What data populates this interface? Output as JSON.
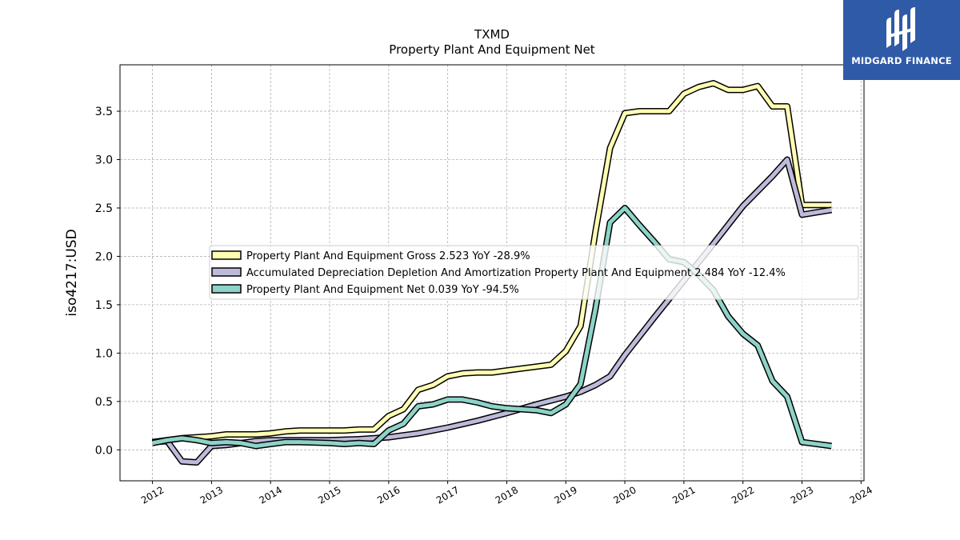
{
  "chart_data": {
    "type": "line",
    "title": "TXMD",
    "subtitle": "Property Plant And Equipment Net",
    "xlabel": "",
    "ylabel": "iso4217:USD",
    "xlim": [
      2011.45,
      2024.05
    ],
    "ylim": [
      -0.32,
      3.98
    ],
    "x_ticks": [
      2012,
      2013,
      2014,
      2015,
      2016,
      2017,
      2018,
      2019,
      2020,
      2021,
      2022,
      2023,
      2024
    ],
    "y_ticks": [
      0.0,
      0.5,
      1.0,
      1.5,
      2.0,
      2.5,
      3.0,
      3.5
    ],
    "y_tick_labels": [
      "0.0",
      "0.5",
      "1.0",
      "1.5",
      "2.0",
      "2.5",
      "3.0",
      "3.5"
    ],
    "grid": true,
    "legend_position": "center",
    "series": [
      {
        "name": "Property Plant And Equipment Gross  2.523 YoY -28.9%",
        "color": "#ffffb3",
        "x": [
          2012.0,
          2012.5,
          2013.0,
          2013.25,
          2013.75,
          2014.0,
          2014.25,
          2014.5,
          2015.0,
          2015.25,
          2015.5,
          2015.75,
          2016.0,
          2016.25,
          2016.5,
          2016.75,
          2017.0,
          2017.25,
          2017.5,
          2017.75,
          2018.0,
          2018.25,
          2018.5,
          2018.75,
          2019.0,
          2019.25,
          2019.5,
          2019.75,
          2020.0,
          2020.25,
          2020.5,
          2020.75,
          2021.0,
          2021.25,
          2021.5,
          2021.75,
          2022.0,
          2022.25,
          2022.5,
          2022.75,
          2023.0,
          2023.5
        ],
        "values": [
          0.08,
          0.12,
          0.14,
          0.16,
          0.16,
          0.17,
          0.19,
          0.2,
          0.2,
          0.2,
          0.21,
          0.21,
          0.35,
          0.42,
          0.62,
          0.67,
          0.76,
          0.79,
          0.8,
          0.8,
          0.82,
          0.84,
          0.86,
          0.88,
          1.02,
          1.28,
          2.25,
          3.12,
          3.48,
          3.5,
          3.5,
          3.5,
          3.68,
          3.75,
          3.79,
          3.72,
          3.72,
          3.76,
          3.55,
          3.55,
          2.53,
          2.53
        ]
      },
      {
        "name": "Accumulated Depreciation Depletion And Amortization Property Plant And Equipment  2.484 YoY -12.4%",
        "color": "#bebada",
        "x": [
          2012.0,
          2012.25,
          2012.5,
          2012.75,
          2013.0,
          2013.25,
          2013.75,
          2014.0,
          2014.5,
          2015.0,
          2015.5,
          2016.0,
          2016.5,
          2017.0,
          2017.5,
          2018.0,
          2018.5,
          2019.0,
          2019.25,
          2019.5,
          2019.75,
          2020.0,
          2020.5,
          2021.0,
          2021.5,
          2022.0,
          2022.5,
          2022.75,
          2023.0,
          2023.5
        ],
        "values": [
          0.08,
          0.09,
          -0.12,
          -0.13,
          0.04,
          0.05,
          0.09,
          0.1,
          0.1,
          0.1,
          0.11,
          0.13,
          0.17,
          0.23,
          0.3,
          0.38,
          0.47,
          0.55,
          0.6,
          0.67,
          0.76,
          0.98,
          1.37,
          1.75,
          2.13,
          2.52,
          2.83,
          3.0,
          2.43,
          2.48
        ]
      },
      {
        "name": "Property Plant And Equipment Net  0.039 YoY -94.5%",
        "color": "#8dd3c7",
        "x": [
          2012.0,
          2012.25,
          2012.5,
          2012.75,
          2013.0,
          2013.25,
          2013.5,
          2013.75,
          2014.0,
          2014.25,
          2014.5,
          2015.0,
          2015.25,
          2015.5,
          2015.75,
          2016.0,
          2016.25,
          2016.5,
          2016.75,
          2017.0,
          2017.25,
          2017.5,
          2017.75,
          2018.0,
          2018.25,
          2018.5,
          2018.75,
          2019.0,
          2019.25,
          2019.5,
          2019.75,
          2020.0,
          2020.25,
          2020.5,
          2020.75,
          2021.0,
          2021.25,
          2021.5,
          2021.75,
          2022.0,
          2022.25,
          2022.5,
          2022.75,
          2023.0,
          2023.5
        ],
        "values": [
          0.07,
          0.1,
          0.12,
          0.1,
          0.07,
          0.08,
          0.07,
          0.04,
          0.06,
          0.08,
          0.08,
          0.07,
          0.06,
          0.07,
          0.06,
          0.2,
          0.27,
          0.45,
          0.47,
          0.52,
          0.52,
          0.49,
          0.45,
          0.43,
          0.42,
          0.41,
          0.38,
          0.47,
          0.68,
          1.45,
          2.35,
          2.5,
          2.32,
          2.15,
          1.97,
          1.94,
          1.81,
          1.65,
          1.38,
          1.2,
          1.08,
          0.71,
          0.55,
          0.08,
          0.04
        ]
      }
    ]
  },
  "watermark": {
    "text": "MIDGARD FINANCE",
    "background": "#2f5aa8"
  }
}
